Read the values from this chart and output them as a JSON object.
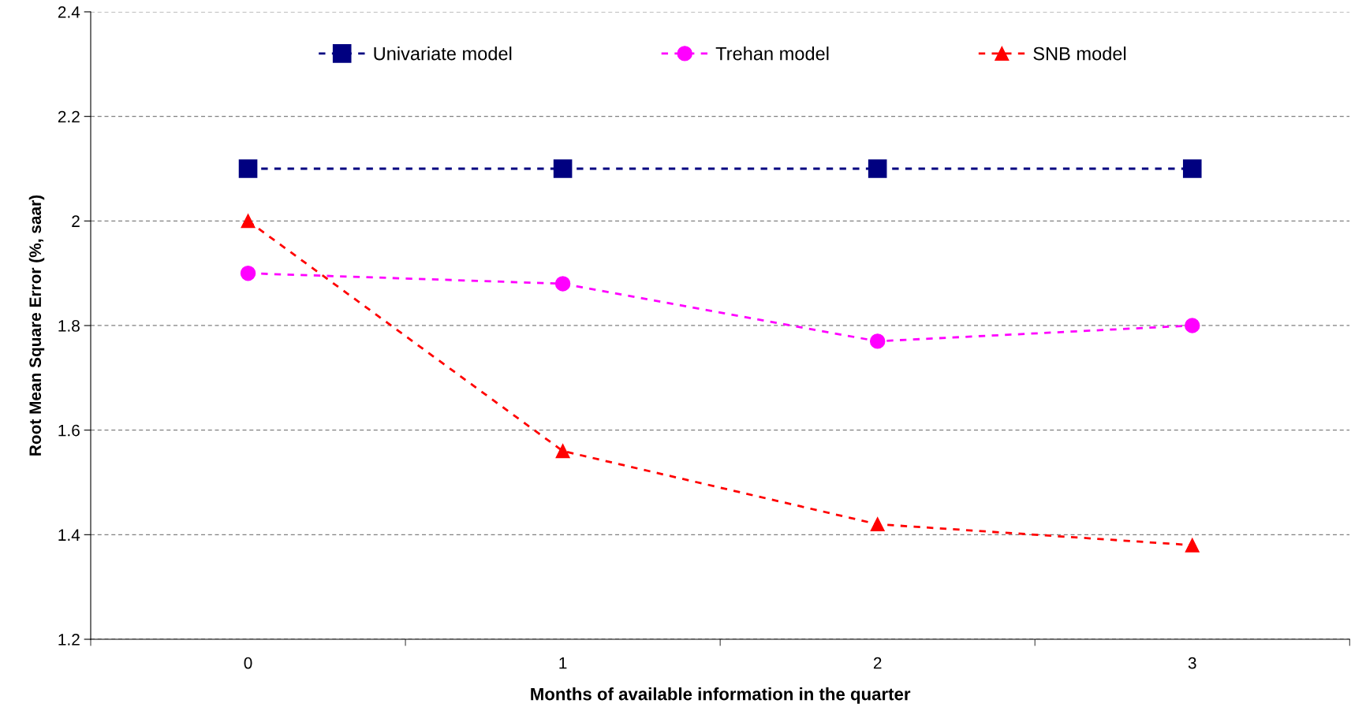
{
  "chart_data": {
    "type": "line",
    "xlabel": "Months of available information in the quarter",
    "ylabel": "Root Mean Square Error (%, saar)",
    "categories": [
      "0",
      "1",
      "2",
      "3"
    ],
    "series": [
      {
        "name": "Univariate model",
        "color": "#000080",
        "marker": "square",
        "values": [
          2.1,
          2.1,
          2.1,
          2.1
        ]
      },
      {
        "name": "Trehan model",
        "color": "#ff00ff",
        "marker": "circle",
        "values": [
          1.9,
          1.88,
          1.77,
          1.8
        ]
      },
      {
        "name": "SNB model",
        "color": "#ff0000",
        "marker": "triangle",
        "values": [
          2.0,
          1.56,
          1.42,
          1.38
        ]
      }
    ],
    "ylim": [
      1.2,
      2.4
    ],
    "yticks": [
      {
        "value": 1.2,
        "label": "1.2"
      },
      {
        "value": 1.4,
        "label": "1.4"
      },
      {
        "value": 1.6,
        "label": "1.6"
      },
      {
        "value": 1.8,
        "label": "1.8"
      },
      {
        "value": 2,
        "label": "2"
      },
      {
        "value": 2.2,
        "label": "2.2"
      },
      {
        "value": 2.4,
        "label": "2.4"
      }
    ],
    "grid": "y",
    "legend": "top",
    "line_style": "dashed"
  }
}
